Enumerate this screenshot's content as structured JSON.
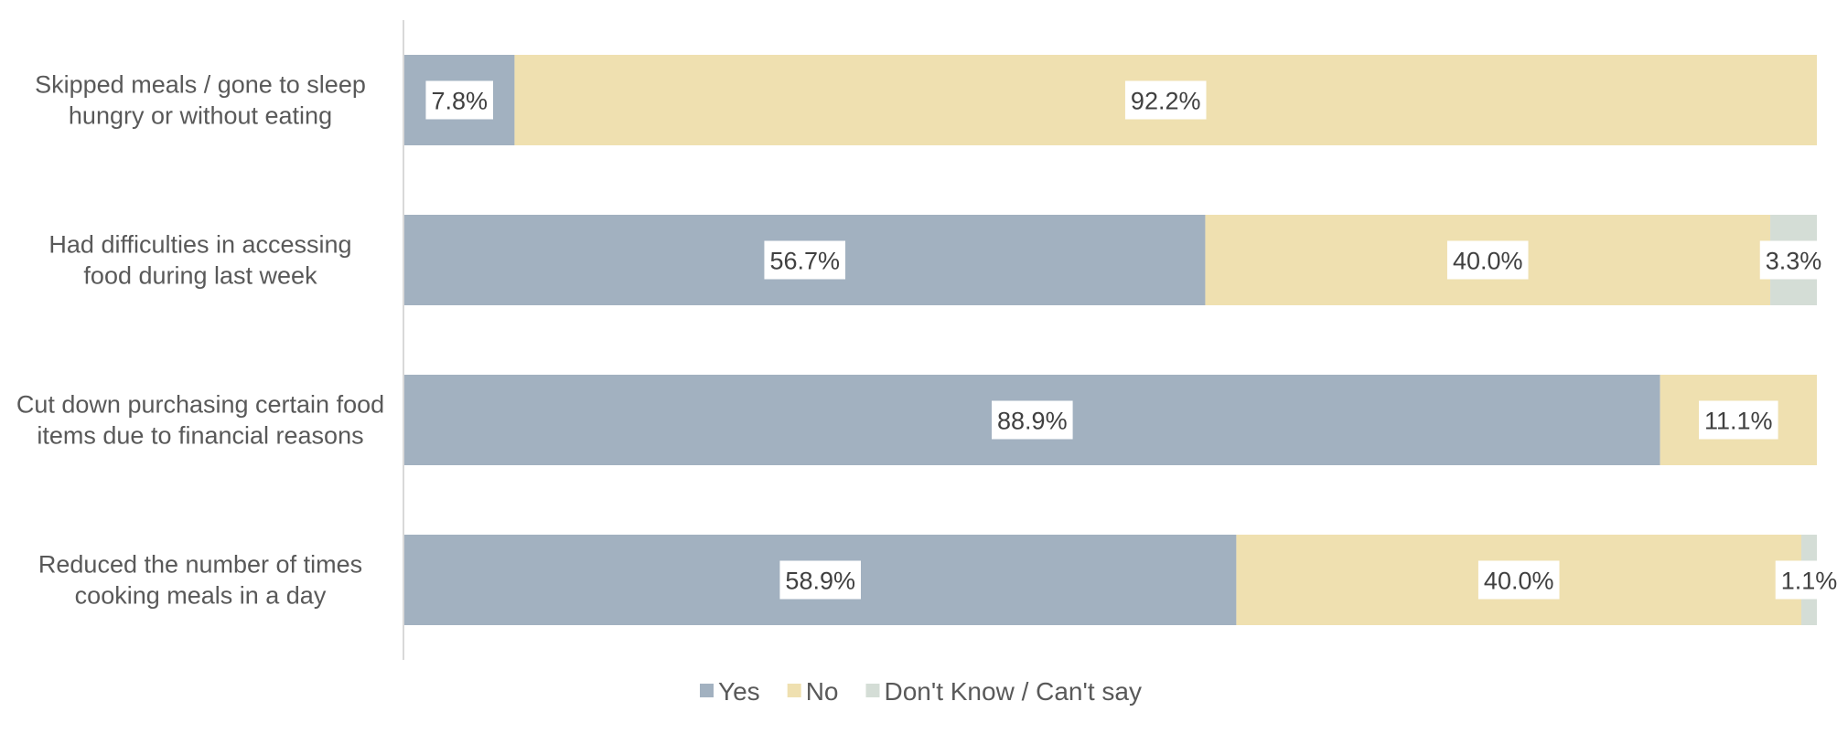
{
  "chart_data": {
    "type": "bar",
    "orientation": "horizontal",
    "stacked": "100%",
    "categories": [
      [
        "Skipped meals / gone to sleep",
        "hungry or without eating"
      ],
      [
        "Had difficulties in accessing",
        "food during last week"
      ],
      [
        "Cut down purchasing certain food",
        "items due to financial reasons"
      ],
      [
        "Reduced the number of times",
        "cooking meals in a day"
      ]
    ],
    "series": [
      {
        "name": "Yes",
        "color": "#a2b1c0",
        "values": [
          7.8,
          56.7,
          88.9,
          58.9
        ],
        "labels": [
          "7.8%",
          "56.7%",
          "88.9%",
          "58.9%"
        ]
      },
      {
        "name": "No",
        "color": "#efe0b0",
        "values": [
          92.2,
          40.0,
          11.1,
          40.0
        ],
        "labels": [
          "92.2%",
          "40.0%",
          "11.1%",
          "40.0%"
        ]
      },
      {
        "name": "Don't Know / Can't say",
        "color": "#d4ddd6",
        "values": [
          0,
          3.3,
          0,
          1.1
        ],
        "labels": [
          "",
          "3.3%",
          "",
          "1.1%"
        ]
      }
    ],
    "xlim": [
      0,
      100
    ],
    "grid": false,
    "legend": "bottom",
    "title": "",
    "xlabel": "",
    "ylabel": ""
  }
}
